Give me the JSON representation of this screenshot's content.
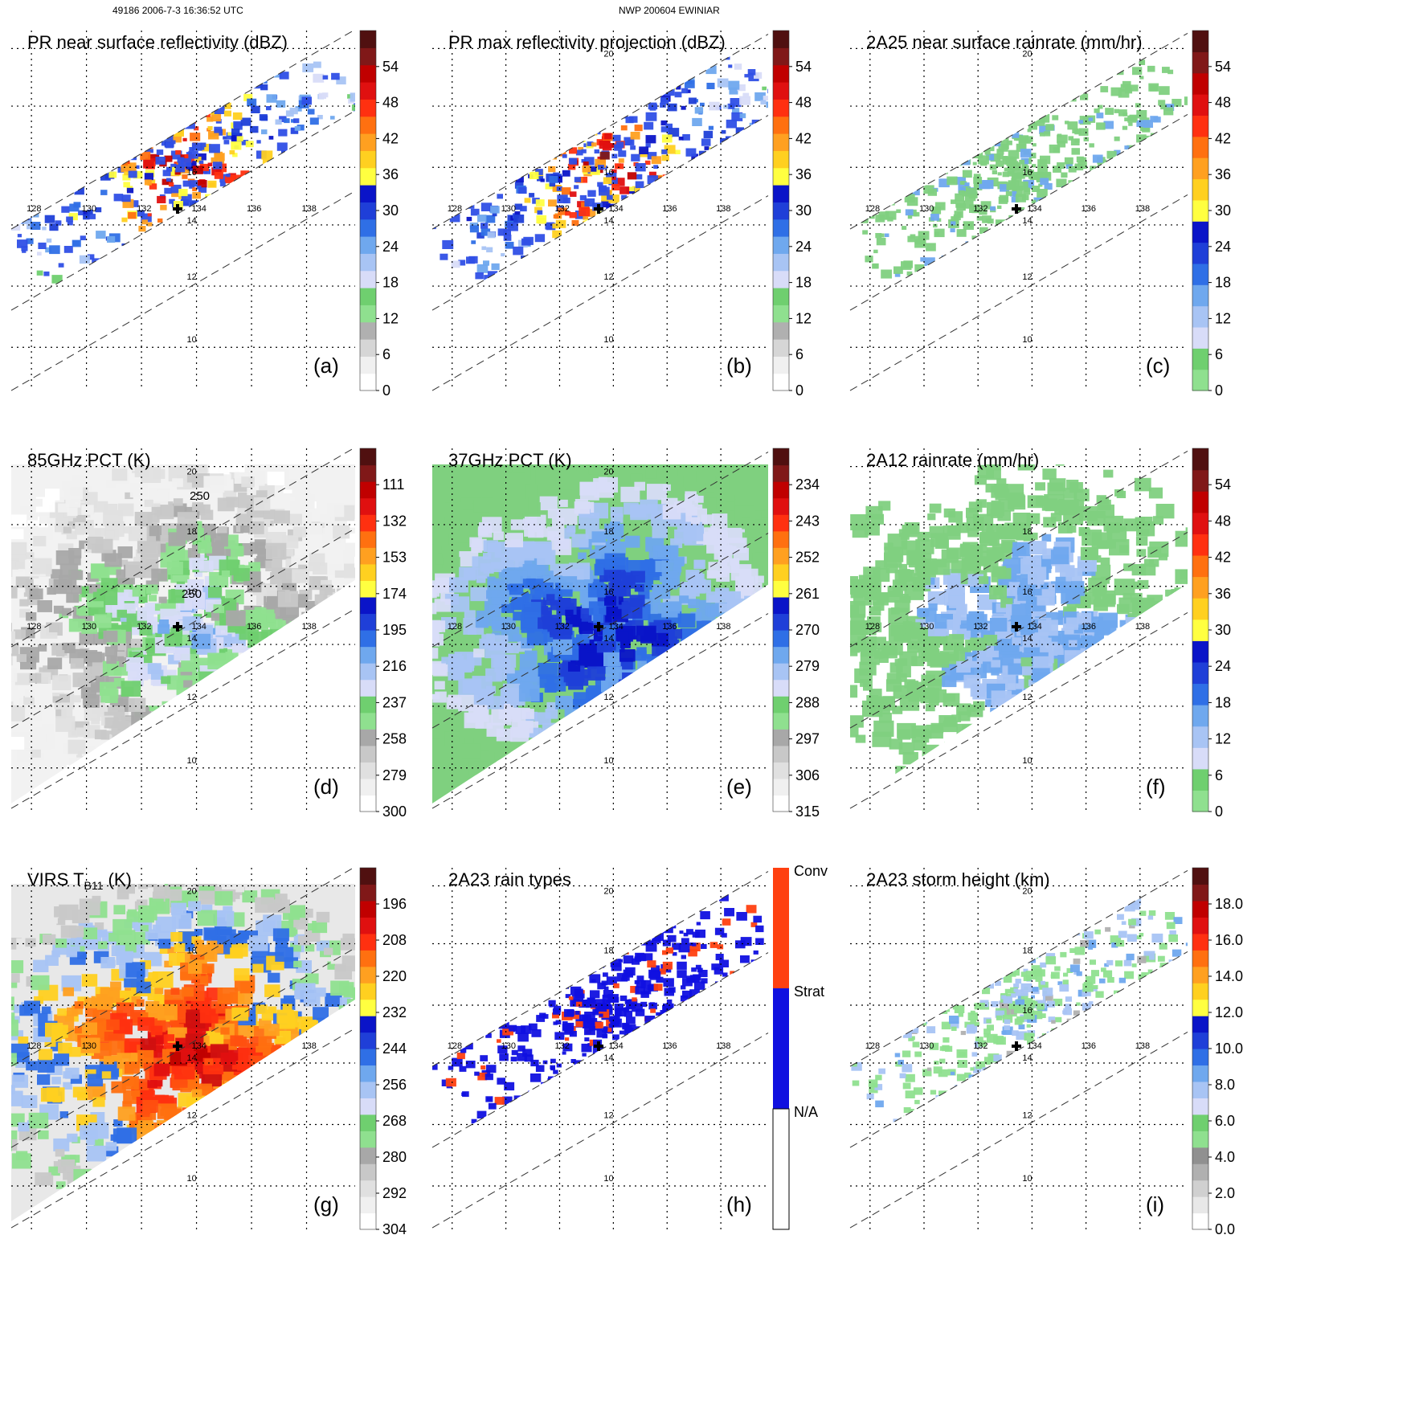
{
  "header": {
    "left": "49186 2006-7-3 16:36:52 UTC",
    "center": "NWP 200604 EWINIAR"
  },
  "colors": {
    "swath": "#7f7f7f",
    "grid": "#000000",
    "storm_marker": "#000000"
  },
  "chart_data": [
    {
      "type": "heatmap",
      "label": "(a)",
      "title": "PR near surface reflectivity (dBZ)",
      "field": "pr",
      "colorbar": [
        "0",
        "6",
        "12",
        "18",
        "24",
        "30",
        "36",
        "42",
        "48",
        "54"
      ],
      "lon_ticks": [
        "128",
        "130",
        "132",
        "134",
        "136",
        "138"
      ],
      "lat_ticks": [
        "10",
        "12",
        "14",
        "16"
      ]
    },
    {
      "type": "heatmap",
      "label": "(b)",
      "title": "PR max reflectivity projection (dBZ)",
      "field": "prmax",
      "colorbar": [
        "0",
        "6",
        "12",
        "18",
        "24",
        "30",
        "36",
        "42",
        "48",
        "54"
      ],
      "lon_ticks": [
        "128",
        "130",
        "132",
        "134",
        "136",
        "138"
      ],
      "lat_ticks": [
        "10",
        "12",
        "14",
        "16",
        "20"
      ]
    },
    {
      "type": "heatmap",
      "label": "(c)",
      "title": "2A25 near surface rainrate (mm/hr)",
      "field": "rain25",
      "colorbar": [
        "0",
        "6",
        "12",
        "18",
        "24",
        "30",
        "36",
        "42",
        "48",
        "54"
      ],
      "lon_ticks": [
        "128",
        "130",
        "132",
        "134",
        "136",
        "138"
      ],
      "lat_ticks": [
        "10",
        "12",
        "14",
        "16",
        "20"
      ]
    },
    {
      "type": "heatmap",
      "label": "(d)",
      "title": "85GHz PCT (K)",
      "field": "pct85",
      "colorbar": [
        "300",
        "279",
        "258",
        "237",
        "216",
        "195",
        "174",
        "153",
        "132",
        "111"
      ],
      "contour_labels": [
        "250",
        "250"
      ],
      "lon_ticks": [
        "128",
        "130",
        "132",
        "134",
        "136",
        "138"
      ],
      "lat_ticks": [
        "10",
        "12",
        "14",
        "16",
        "18",
        "20"
      ]
    },
    {
      "type": "heatmap",
      "label": "(e)",
      "title": "37GHz PCT (K)",
      "field": "pct37",
      "colorbar": [
        "315",
        "306",
        "297",
        "288",
        "279",
        "270",
        "261",
        "252",
        "243",
        "234"
      ],
      "lon_ticks": [
        "128",
        "130",
        "132",
        "134",
        "136",
        "138"
      ],
      "lat_ticks": [
        "10",
        "12",
        "14",
        "16",
        "18",
        "20"
      ]
    },
    {
      "type": "heatmap",
      "label": "(f)",
      "title": "2A12 rainrate (mm/hr)",
      "field": "rain12",
      "colorbar": [
        "0",
        "6",
        "12",
        "18",
        "24",
        "30",
        "36",
        "42",
        "48",
        "54"
      ],
      "lon_ticks": [
        "128",
        "130",
        "132",
        "134",
        "136",
        "138"
      ],
      "lat_ticks": [
        "10",
        "12",
        "14",
        "16",
        "18"
      ]
    },
    {
      "type": "heatmap",
      "label": "(g)",
      "title": "VIRS T",
      "title_sub": "B11",
      "title_end": " (K)",
      "field": "virs",
      "colorbar": [
        "304",
        "292",
        "280",
        "268",
        "256",
        "244",
        "232",
        "220",
        "208",
        "196"
      ],
      "lon_ticks": [
        "128",
        "130",
        "134",
        "138"
      ],
      "lat_ticks": [
        "10",
        "12",
        "14",
        "18",
        "20"
      ]
    },
    {
      "type": "heatmap",
      "label": "(h)",
      "title": "2A23 rain types",
      "field": "types",
      "categorical": true,
      "categories": [
        "N/A",
        "Strat",
        "Conv"
      ],
      "lon_ticks": [
        "128",
        "130",
        "132",
        "134",
        "136",
        "138"
      ],
      "lat_ticks": [
        "10",
        "12",
        "14",
        "18",
        "20"
      ]
    },
    {
      "type": "heatmap",
      "label": "(i)",
      "title": "2A23 storm height (km)",
      "field": "height",
      "colorbar": [
        "0.0",
        "2.0",
        "4.0",
        "6.0",
        "8.0",
        "10.0",
        "12.0",
        "14.0",
        "16.0",
        "18.0"
      ],
      "lon_ticks": [
        "128",
        "130",
        "132",
        "134",
        "136",
        "138"
      ],
      "lat_ticks": [
        "10",
        "12",
        "14",
        "16",
        "18",
        "20"
      ]
    }
  ]
}
